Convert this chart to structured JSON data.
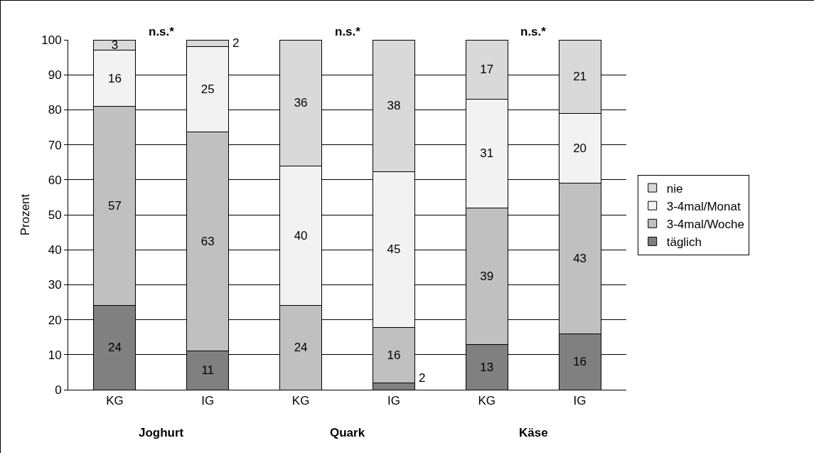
{
  "chart_data": {
    "type": "bar",
    "stacked": true,
    "ylabel": "Prozent",
    "categories": [
      "KG",
      "IG",
      "KG",
      "IG",
      "KG",
      "IG"
    ],
    "series": [
      {
        "name": "täglich",
        "color": "#808080",
        "values": [
          24,
          11,
          null,
          2,
          13,
          16
        ],
        "value_labels": [
          "24",
          "11",
          null,
          "2",
          "13",
          "16"
        ]
      },
      {
        "name": "3-4mal/Woche",
        "color": "#c0c0c0",
        "values": [
          57,
          62.6,
          24,
          15.8,
          39,
          43
        ],
        "value_labels": [
          "57",
          "63",
          "24",
          "16",
          "39",
          "43"
        ]
      },
      {
        "name": "3-4mal/Monat",
        "color": "#f2f2f2",
        "values": [
          16,
          24.5,
          40,
          44.5,
          31,
          20
        ],
        "value_labels": [
          "16",
          "25",
          "40",
          "45",
          "31",
          "20"
        ]
      },
      {
        "name": "nie",
        "color": "#d9d9d9",
        "values": [
          3,
          1.9,
          36,
          37.7,
          17,
          21
        ],
        "value_labels": [
          "3",
          "2",
          "36",
          "38",
          "17",
          "21"
        ]
      }
    ],
    "ylim": [
      0,
      100
    ],
    "yticks": [
      0,
      10,
      20,
      30,
      40,
      50,
      60,
      70,
      80,
      90,
      100
    ],
    "grid": "y",
    "legend": "right",
    "annotations": [
      "n.s.*",
      "n.s.*",
      "n.s.*",
      "Joghurt",
      "Quark",
      "Käse"
    ]
  }
}
